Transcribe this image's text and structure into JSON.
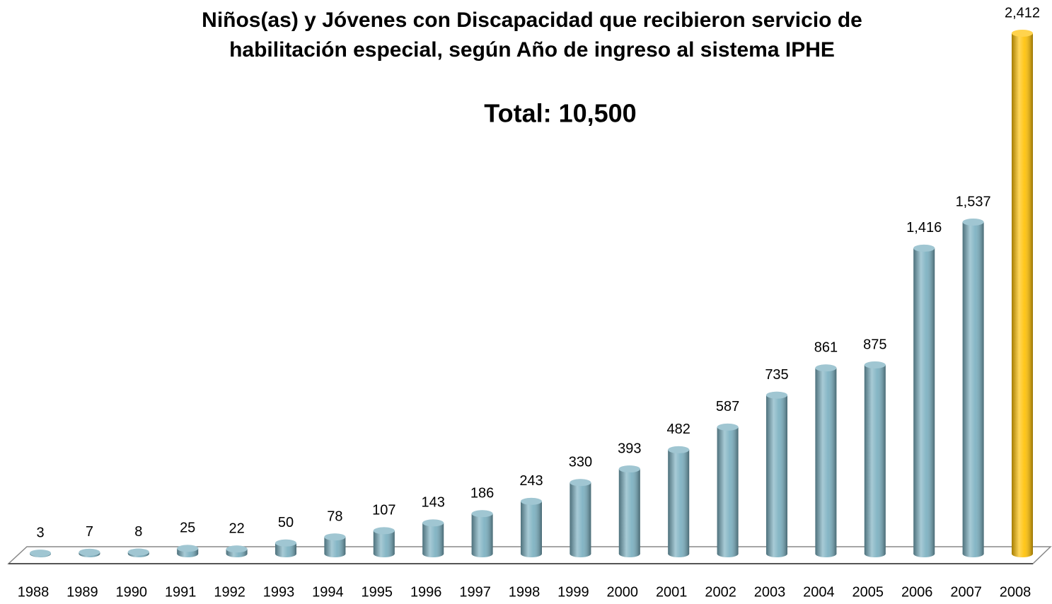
{
  "chart_data": {
    "type": "bar",
    "title": [
      "Niños(as) y Jóvenes con Discapacidad que recibieron servicio de",
      "habilitación especial, según Año de ingreso al sistema IPHE"
    ],
    "subtitle": "Total:  10,500",
    "categories": [
      "1988",
      "1989",
      "1990",
      "1991",
      "1992",
      "1993",
      "1994",
      "1995",
      "1996",
      "1997",
      "1998",
      "1999",
      "2000",
      "2001",
      "2002",
      "2003",
      "2004",
      "2005",
      "2006",
      "2007",
      "2008"
    ],
    "values": [
      3,
      7,
      8,
      25,
      22,
      50,
      78,
      107,
      143,
      186,
      243,
      330,
      393,
      482,
      587,
      735,
      861,
      875,
      1416,
      1537,
      2412
    ],
    "value_labels": [
      "3",
      "7",
      "8",
      "25",
      "22",
      "50",
      "78",
      "107",
      "143",
      "186",
      "243",
      "330",
      "393",
      "482",
      "587",
      "735",
      "861",
      "875",
      "1,416",
      "1,537",
      "2,412"
    ],
    "colors": [
      "#78aebf",
      "#78aebf",
      "#78aebf",
      "#78aebf",
      "#78aebf",
      "#78aebf",
      "#78aebf",
      "#78aebf",
      "#78aebf",
      "#78aebf",
      "#78aebf",
      "#78aebf",
      "#78aebf",
      "#78aebf",
      "#78aebf",
      "#78aebf",
      "#78aebf",
      "#78aebf",
      "#78aebf",
      "#78aebf",
      "#ffc000"
    ]
  }
}
